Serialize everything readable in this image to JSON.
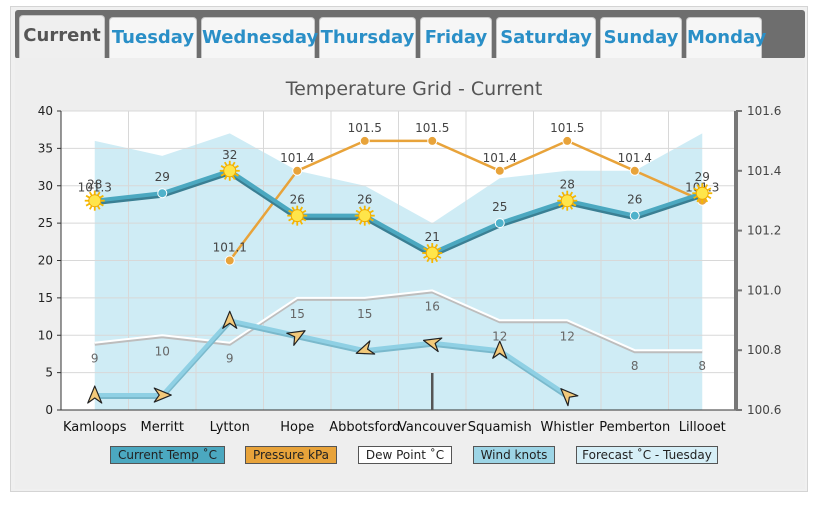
{
  "tabs": [
    {
      "label": "Current",
      "active": true
    },
    {
      "label": "Tuesday"
    },
    {
      "label": "Wednesday"
    },
    {
      "label": "Thursday"
    },
    {
      "label": "Friday"
    },
    {
      "label": "Saturday"
    },
    {
      "label": "Sunday"
    },
    {
      "label": "Monday"
    }
  ],
  "colors": {
    "current_temp": "#4ba8c0",
    "pressure": "#e8a33a",
    "dew_point": "#ffffff",
    "wind": "#8fd0e4",
    "forecast": "#cfecf5",
    "tab_text": "#2a8fc7"
  },
  "icons": {
    "sun": "sun-icon",
    "wind": "wind-arrow-icon"
  },
  "legend": {
    "current_temp": "Current Temp ˚C",
    "pressure": "Pressure kPa",
    "dew_point": "Dew Point ˚C",
    "wind": "Wind knots",
    "forecast": "Forecast ˚C - Tuesday"
  },
  "chart_data": {
    "type": "line",
    "title": "Temperature Grid - Current",
    "categories": [
      "Kamloops",
      "Merritt",
      "Lytton",
      "Hope",
      "Abbotsford",
      "Vancouver",
      "Squamish",
      "Whistler",
      "Pemberton",
      "Lillooet"
    ],
    "y_left": {
      "min": 0,
      "max": 40,
      "ticks": [
        0,
        5,
        10,
        15,
        20,
        25,
        30,
        35,
        40
      ]
    },
    "y_right": {
      "min": 100.6,
      "max": 101.6,
      "ticks": [
        "100.6",
        "100.8",
        "101.0",
        "101.2",
        "101.4",
        "101.6"
      ]
    },
    "grid": true,
    "legend_position": "bottom",
    "series": [
      {
        "key": "forecast",
        "name": "Forecast ˚C - Tuesday",
        "type": "area",
        "axis": "left",
        "values": [
          36,
          34,
          37,
          32,
          30,
          25,
          31,
          32,
          32,
          37
        ]
      },
      {
        "key": "current_temp",
        "name": "Current Temp ˚C",
        "type": "line",
        "axis": "left",
        "values": [
          28,
          29,
          32,
          26,
          26,
          21,
          25,
          28,
          26,
          29
        ],
        "labels": [
          "28",
          "29",
          "32",
          "26",
          "26",
          "21",
          "25",
          "28",
          "26",
          "29"
        ]
      },
      {
        "key": "pressure",
        "name": "Pressure kPa",
        "type": "line",
        "axis": "right",
        "values": [
          101.3,
          null,
          101.1,
          101.4,
          101.5,
          101.5,
          101.4,
          101.5,
          101.4,
          101.3
        ],
        "labels": [
          "101.3",
          "",
          "101.1",
          "101.4",
          "101.5",
          "101.5",
          "101.4",
          "101.5",
          "101.4",
          "101.3"
        ]
      },
      {
        "key": "dew_point",
        "name": "Dew Point ˚C",
        "type": "line",
        "axis": "left",
        "values": [
          9,
          10,
          9,
          15,
          15,
          16,
          12,
          12,
          8,
          8
        ],
        "labels": [
          "9",
          "10",
          "9",
          "15",
          "15",
          "16",
          "12",
          "12",
          "8",
          "8"
        ]
      },
      {
        "key": "wind",
        "name": "Wind knots",
        "type": "line",
        "axis": "left",
        "values": [
          2,
          2,
          12,
          10,
          8,
          9,
          8,
          2,
          null,
          null
        ]
      }
    ]
  }
}
